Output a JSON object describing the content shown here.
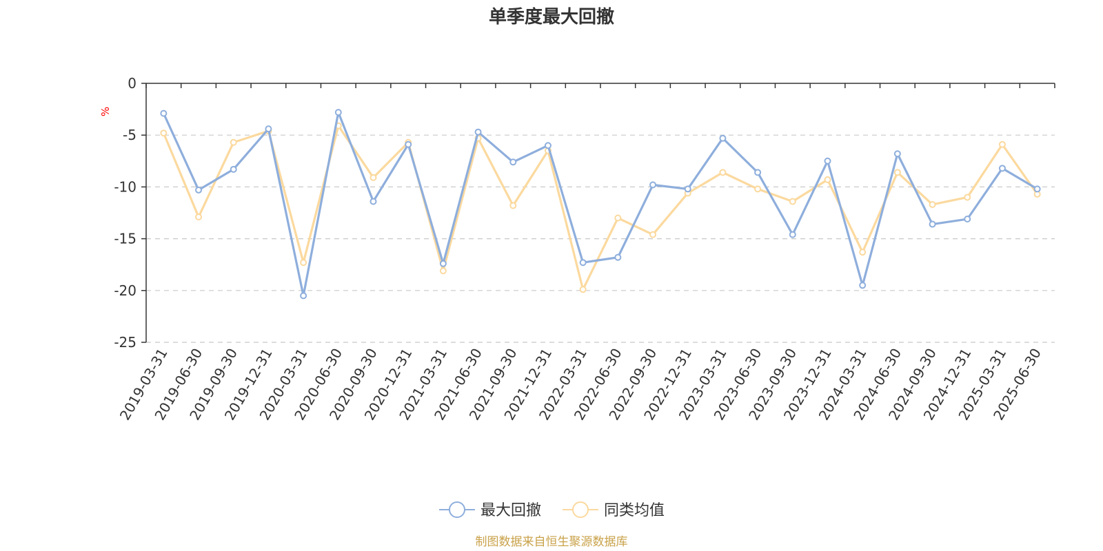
{
  "chart_data": {
    "type": "line",
    "title": "单季度最大回撤",
    "ylabel": "%",
    "ylim": [
      -25,
      0
    ],
    "yticks": [
      0,
      -5,
      -10,
      -15,
      -20,
      -25
    ],
    "grid": true,
    "legend_position": "bottom-center",
    "categories": [
      "2019-03-31",
      "2019-06-30",
      "2019-09-30",
      "2019-12-31",
      "2020-03-31",
      "2020-06-30",
      "2020-09-30",
      "2020-12-31",
      "2021-03-31",
      "2021-06-30",
      "2021-09-30",
      "2021-12-31",
      "2022-03-31",
      "2022-06-30",
      "2022-09-30",
      "2022-12-31",
      "2023-03-31",
      "2023-06-30",
      "2023-09-30",
      "2023-12-31",
      "2024-03-31",
      "2024-06-30",
      "2024-09-30",
      "2024-12-31",
      "2025-03-31",
      "2025-06-30"
    ],
    "series": [
      {
        "name": "最大回撤",
        "color": "#8eaedc",
        "values": [
          -2.9,
          -10.3,
          -8.3,
          -4.4,
          -20.5,
          -2.8,
          -11.4,
          -5.9,
          -17.4,
          -4.7,
          -7.6,
          -6.0,
          -17.3,
          -16.8,
          -9.8,
          -10.2,
          -5.3,
          -8.6,
          -14.6,
          -7.5,
          -19.5,
          -6.8,
          -13.6,
          -13.1,
          -8.2,
          -10.2
        ]
      },
      {
        "name": "同类均值",
        "color": "#fbd99e",
        "values": [
          -4.8,
          -12.9,
          -5.7,
          -4.6,
          -17.3,
          -4.1,
          -9.1,
          -5.7,
          -18.1,
          -5.3,
          -11.8,
          -6.5,
          -19.9,
          -13.0,
          -14.6,
          -10.6,
          -8.6,
          -10.2,
          -11.4,
          -9.3,
          -16.3,
          -8.6,
          -11.7,
          -11.0,
          -5.9,
          -10.7
        ]
      }
    ],
    "source": "制图数据来自恒生聚源数据库"
  }
}
